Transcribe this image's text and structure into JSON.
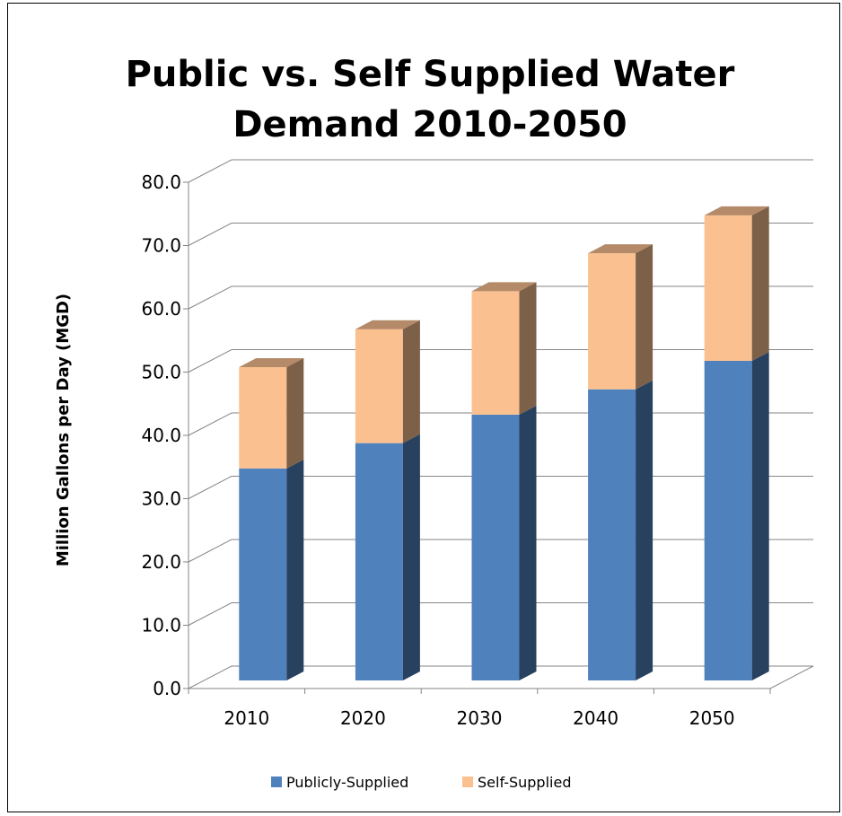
{
  "chart_data": {
    "type": "bar",
    "stacked": true,
    "three_d": true,
    "title": [
      "Public vs. Self Supplied Water",
      "Demand 2010-2050"
    ],
    "xlabel": "",
    "ylabel": "Million Gallons per Day (MGD)",
    "categories": [
      "2010",
      "2020",
      "2030",
      "2040",
      "2050"
    ],
    "series": [
      {
        "name": "Publicly-Supplied",
        "color": "#4F81BD",
        "values": [
          33.5,
          37.5,
          42.0,
          46.0,
          50.5
        ]
      },
      {
        "name": "Self-Supplied",
        "color": "#FAC090",
        "values": [
          16.0,
          18.0,
          19.5,
          21.5,
          23.0
        ]
      }
    ],
    "ylim": [
      0,
      80
    ],
    "yticks": [
      "0.0",
      "10.0",
      "20.0",
      "30.0",
      "40.0",
      "50.0",
      "60.0",
      "70.0",
      "80.0"
    ],
    "grid": true,
    "legend_position": "bottom"
  }
}
